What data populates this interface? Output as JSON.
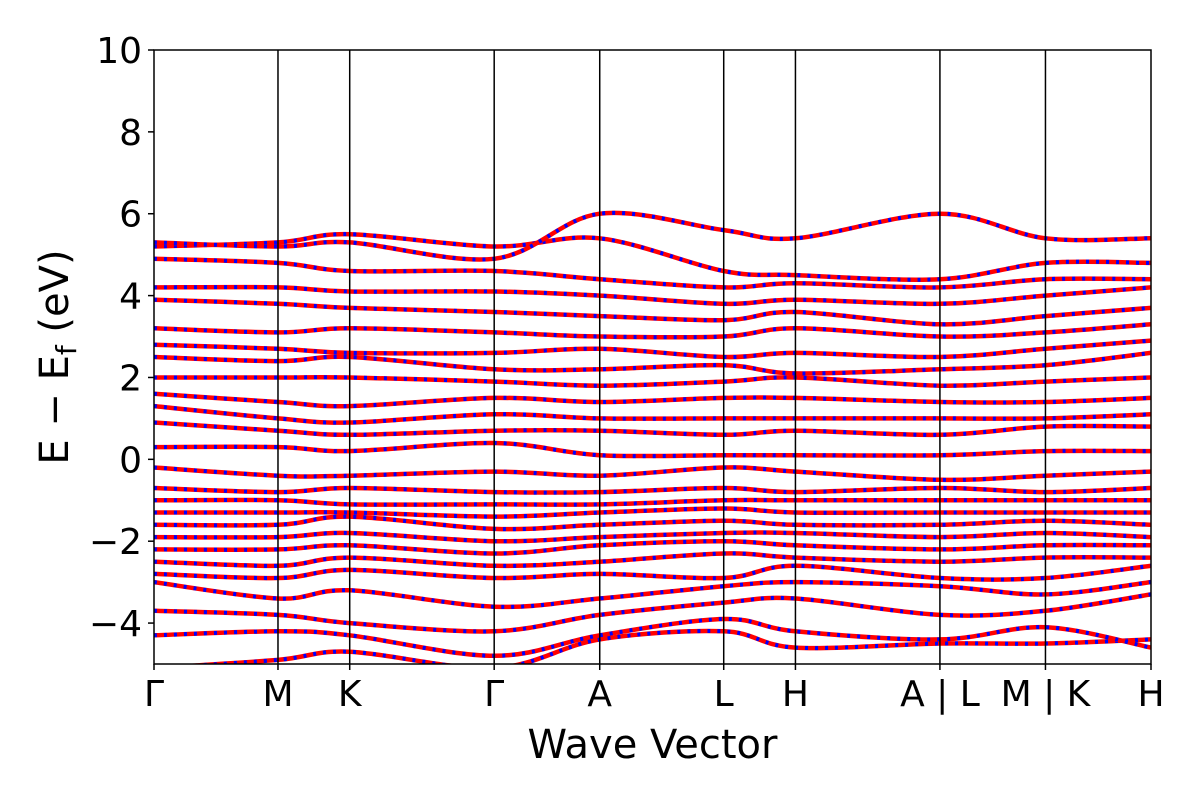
{
  "chart_data": {
    "type": "line",
    "title": "",
    "xlabel": "Wave Vector",
    "ylabel_parts": {
      "main": "E − E",
      "sub": "f",
      "unit": " (eV)"
    },
    "ylim": [
      -5,
      10
    ],
    "yticks": [
      {
        "value": 10,
        "label": "10"
      },
      {
        "value": 8,
        "label": "8"
      },
      {
        "value": 6,
        "label": "6"
      },
      {
        "value": 4,
        "label": "4"
      },
      {
        "value": 2,
        "label": "2"
      },
      {
        "value": 0,
        "label": "0"
      },
      {
        "value": -2,
        "label": "−2"
      },
      {
        "value": -4,
        "label": "−4"
      }
    ],
    "xlim": [
      0,
      9.73
    ],
    "kpoints": [
      {
        "pos": 0.0,
        "label": "Γ"
      },
      {
        "pos": 1.21,
        "label": "M"
      },
      {
        "pos": 1.91,
        "label": "K"
      },
      {
        "pos": 3.32,
        "label": "Γ"
      },
      {
        "pos": 4.35,
        "label": "A"
      },
      {
        "pos": 5.56,
        "label": "L"
      },
      {
        "pos": 6.26,
        "label": "H"
      },
      {
        "pos": 7.67,
        "label": "A | L"
      },
      {
        "pos": 8.7,
        "label": "M | K"
      },
      {
        "pos": 9.73,
        "label": "H"
      }
    ],
    "grid": false,
    "series_styles": [
      {
        "color": "#ff0000",
        "style": "solid"
      },
      {
        "color": "#0000ff",
        "style": "dashed"
      }
    ],
    "bands": [
      [
        [
          0,
          -5.1
        ],
        [
          1.21,
          -4.9
        ],
        [
          1.91,
          -4.7
        ],
        [
          3.32,
          -5.1
        ],
        [
          4.35,
          -4.4
        ],
        [
          5.56,
          -4.2
        ],
        [
          6.26,
          -4.6
        ],
        [
          7.67,
          -4.5
        ],
        [
          8.7,
          -4.5
        ],
        [
          9.73,
          -4.4
        ]
      ],
      [
        [
          0,
          -4.3
        ],
        [
          1.21,
          -4.2
        ],
        [
          1.91,
          -4.3
        ],
        [
          3.32,
          -4.8
        ],
        [
          4.35,
          -4.3
        ],
        [
          5.56,
          -3.9
        ],
        [
          6.26,
          -4.2
        ],
        [
          7.67,
          -4.4
        ],
        [
          8.7,
          -4.1
        ],
        [
          9.73,
          -4.6
        ]
      ],
      [
        [
          0,
          -3.7
        ],
        [
          1.21,
          -3.8
        ],
        [
          1.91,
          -4.0
        ],
        [
          3.32,
          -4.2
        ],
        [
          4.35,
          -3.8
        ],
        [
          5.56,
          -3.5
        ],
        [
          6.26,
          -3.4
        ],
        [
          7.67,
          -3.8
        ],
        [
          8.7,
          -3.7
        ],
        [
          9.73,
          -3.3
        ]
      ],
      [
        [
          0,
          -3.0
        ],
        [
          1.21,
          -3.4
        ],
        [
          1.91,
          -3.2
        ],
        [
          3.32,
          -3.6
        ],
        [
          4.35,
          -3.4
        ],
        [
          5.56,
          -3.1
        ],
        [
          6.26,
          -3.0
        ],
        [
          7.67,
          -3.1
        ],
        [
          8.7,
          -3.3
        ],
        [
          9.73,
          -3.0
        ]
      ],
      [
        [
          0,
          -2.8
        ],
        [
          1.21,
          -2.9
        ],
        [
          1.91,
          -2.7
        ],
        [
          3.32,
          -2.9
        ],
        [
          4.35,
          -2.8
        ],
        [
          5.56,
          -2.9
        ],
        [
          6.26,
          -2.6
        ],
        [
          7.67,
          -2.9
        ],
        [
          8.7,
          -2.9
        ],
        [
          9.73,
          -2.6
        ]
      ],
      [
        [
          0,
          -2.5
        ],
        [
          1.21,
          -2.6
        ],
        [
          1.91,
          -2.4
        ],
        [
          3.32,
          -2.6
        ],
        [
          4.35,
          -2.5
        ],
        [
          5.56,
          -2.3
        ],
        [
          6.26,
          -2.4
        ],
        [
          7.67,
          -2.5
        ],
        [
          8.7,
          -2.4
        ],
        [
          9.73,
          -2.4
        ]
      ],
      [
        [
          0,
          -2.2
        ],
        [
          1.21,
          -2.2
        ],
        [
          1.91,
          -2.1
        ],
        [
          3.32,
          -2.3
        ],
        [
          4.35,
          -2.1
        ],
        [
          5.56,
          -2.0
        ],
        [
          6.26,
          -2.1
        ],
        [
          7.67,
          -2.2
        ],
        [
          8.7,
          -2.1
        ],
        [
          9.73,
          -2.1
        ]
      ],
      [
        [
          0,
          -1.9
        ],
        [
          1.21,
          -1.9
        ],
        [
          1.91,
          -1.8
        ],
        [
          3.32,
          -2.0
        ],
        [
          4.35,
          -1.9
        ],
        [
          5.56,
          -1.8
        ],
        [
          6.26,
          -1.8
        ],
        [
          7.67,
          -1.9
        ],
        [
          8.7,
          -1.8
        ],
        [
          9.73,
          -1.9
        ]
      ],
      [
        [
          0,
          -1.6
        ],
        [
          1.21,
          -1.6
        ],
        [
          1.91,
          -1.4
        ],
        [
          3.32,
          -1.7
        ],
        [
          4.35,
          -1.6
        ],
        [
          5.56,
          -1.5
        ],
        [
          6.26,
          -1.6
        ],
        [
          7.67,
          -1.6
        ],
        [
          8.7,
          -1.5
        ],
        [
          9.73,
          -1.6
        ]
      ],
      [
        [
          0,
          -1.3
        ],
        [
          1.21,
          -1.3
        ],
        [
          1.91,
          -1.3
        ],
        [
          3.32,
          -1.4
        ],
        [
          4.35,
          -1.3
        ],
        [
          5.56,
          -1.2
        ],
        [
          6.26,
          -1.3
        ],
        [
          7.67,
          -1.3
        ],
        [
          8.7,
          -1.3
        ],
        [
          9.73,
          -1.3
        ]
      ],
      [
        [
          0,
          -1.0
        ],
        [
          1.21,
          -1.0
        ],
        [
          1.91,
          -1.1
        ],
        [
          3.32,
          -1.1
        ],
        [
          4.35,
          -1.1
        ],
        [
          5.56,
          -1.0
        ],
        [
          6.26,
          -1.0
        ],
        [
          7.67,
          -1.0
        ],
        [
          8.7,
          -1.0
        ],
        [
          9.73,
          -1.0
        ]
      ],
      [
        [
          0,
          -0.7
        ],
        [
          1.21,
          -0.8
        ],
        [
          1.91,
          -0.7
        ],
        [
          3.32,
          -0.8
        ],
        [
          4.35,
          -0.8
        ],
        [
          5.56,
          -0.7
        ],
        [
          6.26,
          -0.8
        ],
        [
          7.67,
          -0.7
        ],
        [
          8.7,
          -0.8
        ],
        [
          9.73,
          -0.7
        ]
      ],
      [
        [
          0,
          -0.2
        ],
        [
          1.21,
          -0.4
        ],
        [
          1.91,
          -0.4
        ],
        [
          3.32,
          -0.3
        ],
        [
          4.35,
          -0.4
        ],
        [
          5.56,
          -0.2
        ],
        [
          6.26,
          -0.3
        ],
        [
          7.67,
          -0.5
        ],
        [
          8.7,
          -0.4
        ],
        [
          9.73,
          -0.3
        ]
      ],
      [
        [
          0,
          0.3
        ],
        [
          1.21,
          0.3
        ],
        [
          1.91,
          0.2
        ],
        [
          3.32,
          0.4
        ],
        [
          4.35,
          0.1
        ],
        [
          5.56,
          0.1
        ],
        [
          6.26,
          0.1
        ],
        [
          7.67,
          0.1
        ],
        [
          8.7,
          0.2
        ],
        [
          9.73,
          0.2
        ]
      ],
      [
        [
          0,
          0.9
        ],
        [
          1.21,
          0.7
        ],
        [
          1.91,
          0.6
        ],
        [
          3.32,
          0.7
        ],
        [
          4.35,
          0.7
        ],
        [
          5.56,
          0.6
        ],
        [
          6.26,
          0.7
        ],
        [
          7.67,
          0.6
        ],
        [
          8.7,
          0.8
        ],
        [
          9.73,
          0.8
        ]
      ],
      [
        [
          0,
          1.3
        ],
        [
          1.21,
          1.0
        ],
        [
          1.91,
          0.9
        ],
        [
          3.32,
          1.1
        ],
        [
          4.35,
          1.0
        ],
        [
          5.56,
          1.0
        ],
        [
          6.26,
          1.0
        ],
        [
          7.67,
          1.0
        ],
        [
          8.7,
          1.0
        ],
        [
          9.73,
          1.1
        ]
      ],
      [
        [
          0,
          1.6
        ],
        [
          1.21,
          1.4
        ],
        [
          1.91,
          1.3
        ],
        [
          3.32,
          1.5
        ],
        [
          4.35,
          1.4
        ],
        [
          5.56,
          1.5
        ],
        [
          6.26,
          1.5
        ],
        [
          7.67,
          1.4
        ],
        [
          8.7,
          1.4
        ],
        [
          9.73,
          1.5
        ]
      ],
      [
        [
          0,
          2.0
        ],
        [
          1.21,
          2.0
        ],
        [
          1.91,
          2.0
        ],
        [
          3.32,
          1.9
        ],
        [
          4.35,
          1.8
        ],
        [
          5.56,
          1.9
        ],
        [
          6.26,
          2.0
        ],
        [
          7.67,
          1.8
        ],
        [
          8.7,
          1.9
        ],
        [
          9.73,
          2.0
        ]
      ],
      [
        [
          0,
          2.5
        ],
        [
          1.21,
          2.4
        ],
        [
          1.91,
          2.5
        ],
        [
          3.32,
          2.2
        ],
        [
          4.35,
          2.2
        ],
        [
          5.56,
          2.3
        ],
        [
          6.26,
          2.1
        ],
        [
          7.67,
          2.2
        ],
        [
          8.7,
          2.3
        ],
        [
          9.73,
          2.6
        ]
      ],
      [
        [
          0,
          2.8
        ],
        [
          1.21,
          2.7
        ],
        [
          1.91,
          2.6
        ],
        [
          3.32,
          2.6
        ],
        [
          4.35,
          2.7
        ],
        [
          5.56,
          2.5
        ],
        [
          6.26,
          2.6
        ],
        [
          7.67,
          2.5
        ],
        [
          8.7,
          2.7
        ],
        [
          9.73,
          2.9
        ]
      ],
      [
        [
          0,
          3.2
        ],
        [
          1.21,
          3.1
        ],
        [
          1.91,
          3.2
        ],
        [
          3.32,
          3.1
        ],
        [
          4.35,
          3.0
        ],
        [
          5.56,
          3.0
        ],
        [
          6.26,
          3.2
        ],
        [
          7.67,
          3.0
        ],
        [
          8.7,
          3.1
        ],
        [
          9.73,
          3.3
        ]
      ],
      [
        [
          0,
          3.9
        ],
        [
          1.21,
          3.8
        ],
        [
          1.91,
          3.7
        ],
        [
          3.32,
          3.6
        ],
        [
          4.35,
          3.5
        ],
        [
          5.56,
          3.4
        ],
        [
          6.26,
          3.6
        ],
        [
          7.67,
          3.3
        ],
        [
          8.7,
          3.5
        ],
        [
          9.73,
          3.7
        ]
      ],
      [
        [
          0,
          4.2
        ],
        [
          1.21,
          4.2
        ],
        [
          1.91,
          4.1
        ],
        [
          3.32,
          4.1
        ],
        [
          4.35,
          4.0
        ],
        [
          5.56,
          3.8
        ],
        [
          6.26,
          3.9
        ],
        [
          7.67,
          3.8
        ],
        [
          8.7,
          4.0
        ],
        [
          9.73,
          4.2
        ]
      ],
      [
        [
          0,
          4.9
        ],
        [
          1.21,
          4.8
        ],
        [
          1.91,
          4.6
        ],
        [
          3.32,
          4.6
        ],
        [
          4.35,
          4.4
        ],
        [
          5.56,
          4.2
        ],
        [
          6.26,
          4.3
        ],
        [
          7.67,
          4.2
        ],
        [
          8.7,
          4.4
        ],
        [
          9.73,
          4.4
        ]
      ],
      [
        [
          0,
          5.2
        ],
        [
          1.21,
          5.3
        ],
        [
          1.91,
          5.5
        ],
        [
          3.32,
          5.2
        ],
        [
          4.35,
          5.4
        ],
        [
          5.56,
          4.6
        ],
        [
          6.26,
          4.5
        ],
        [
          7.67,
          4.4
        ],
        [
          8.7,
          4.8
        ],
        [
          9.73,
          4.8
        ]
      ],
      [
        [
          0,
          5.3
        ],
        [
          1.21,
          5.2
        ],
        [
          1.91,
          5.3
        ],
        [
          3.32,
          4.9
        ],
        [
          4.35,
          6.0
        ],
        [
          5.56,
          5.6
        ],
        [
          6.26,
          5.4
        ],
        [
          7.67,
          6.0
        ],
        [
          8.7,
          5.4
        ],
        [
          9.73,
          5.4
        ]
      ]
    ]
  }
}
